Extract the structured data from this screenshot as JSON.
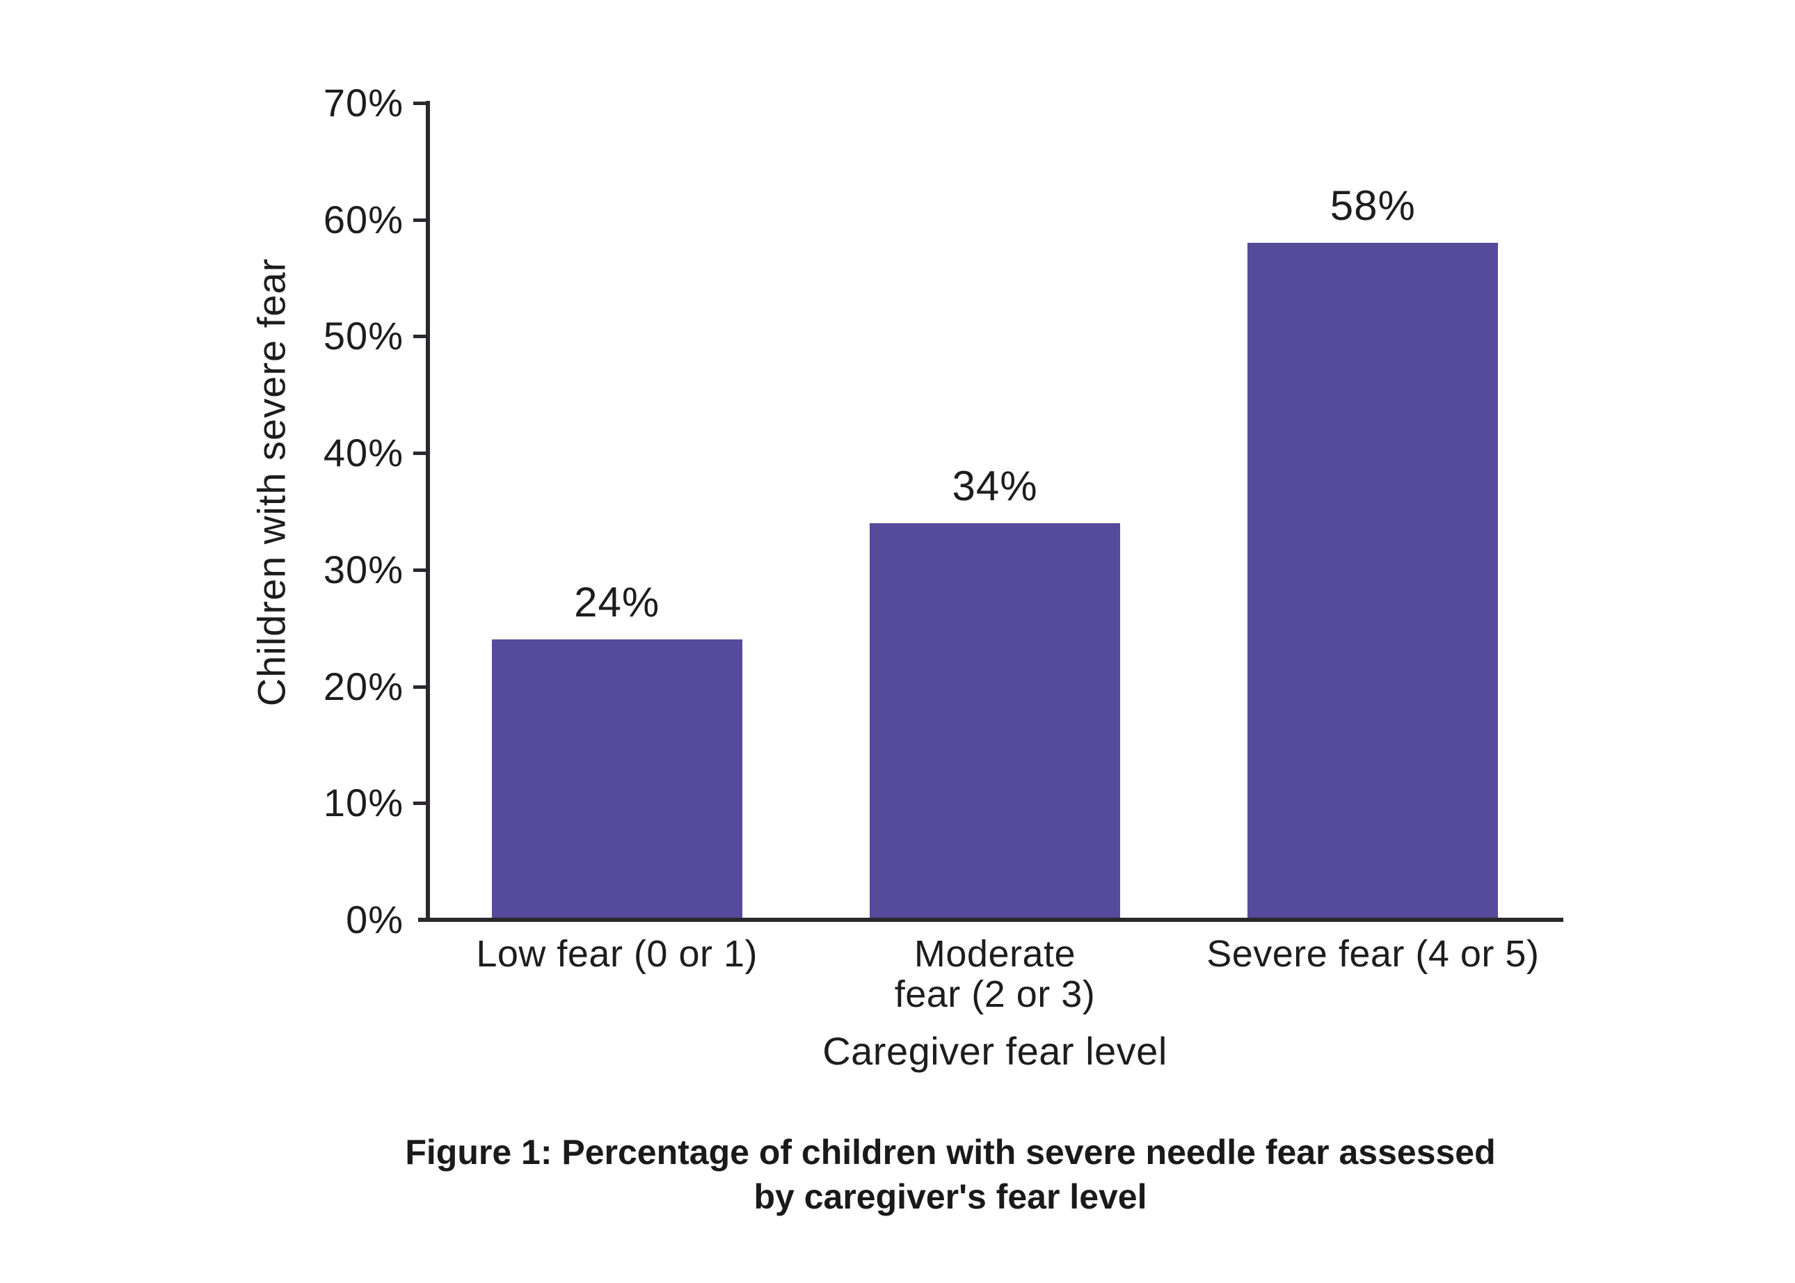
{
  "chart_data": {
    "type": "bar",
    "title": "",
    "categories": [
      "Low fear (0 or 1)",
      "Moderate fear (2 or 3)",
      "Severe fear (4 or 5)"
    ],
    "category_display": [
      "Low fear (0 or 1)",
      "Moderate\nfear (2 or 3)",
      "Severe fear (4 or 5)"
    ],
    "values": [
      24,
      34,
      58
    ],
    "bar_value_labels": [
      "24%",
      "34%",
      "58%"
    ],
    "xlabel": "Caregiver fear level",
    "ylabel": "Children with severe fear",
    "ylim": [
      0,
      70
    ],
    "ytick_step": 10,
    "ytick_labels": [
      "0%",
      "10%",
      "20%",
      "30%",
      "40%",
      "50%",
      "60%",
      "70%"
    ],
    "grid": false,
    "legend": false,
    "bar_color": "#564A9B",
    "axis_color": "#2A282C"
  },
  "caption": {
    "lines": [
      "Figure 1: Percentage of children with severe needle fear assessed",
      "by caregiver's fear level"
    ]
  }
}
